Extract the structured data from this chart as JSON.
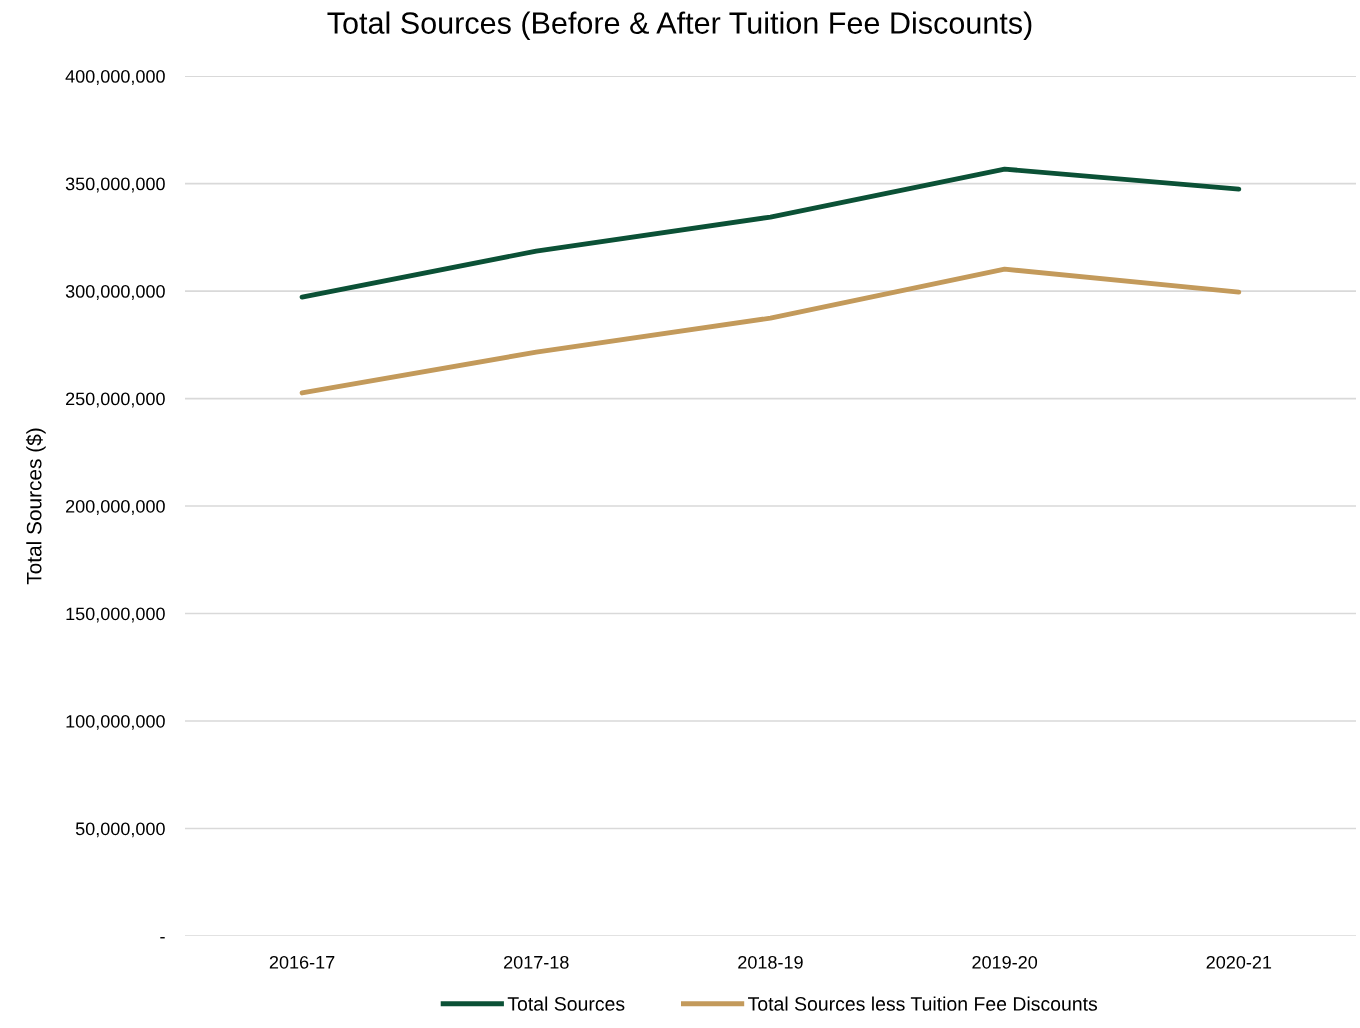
{
  "chart_data": {
    "type": "line",
    "title": "Total Sources (Before & After Tuition Fee Discounts)",
    "ylabel": "Total Sources ($)",
    "categories": [
      "2016-17",
      "2017-18",
      "2018-19",
      "2019-20",
      "2020-21"
    ],
    "series": [
      {
        "name": "Total Sources",
        "color": "#0b5136",
        "values": [
          297200000,
          318600000,
          334400000,
          356700000,
          347400000
        ]
      },
      {
        "name": "Total Sources less Tuition Fee Discounts",
        "color": "#c39a5b",
        "values": [
          252600000,
          271600000,
          287400000,
          310200000,
          299500000
        ]
      }
    ],
    "ylim": [
      0,
      400000000
    ],
    "yticks": [
      {
        "value": 0,
        "label": "-"
      },
      {
        "value": 50000000,
        "label": "50,000,000"
      },
      {
        "value": 100000000,
        "label": "100,000,000"
      },
      {
        "value": 150000000,
        "label": "150,000,000"
      },
      {
        "value": 200000000,
        "label": "200,000,000"
      },
      {
        "value": 250000000,
        "label": "250,000,000"
      },
      {
        "value": 300000000,
        "label": "300,000,000"
      },
      {
        "value": 350000000,
        "label": "350,000,000"
      },
      {
        "value": 400000000,
        "label": "400,000,000"
      }
    ],
    "grid": "y",
    "legend": "bottom",
    "marker": "none",
    "line_style": "solid"
  }
}
